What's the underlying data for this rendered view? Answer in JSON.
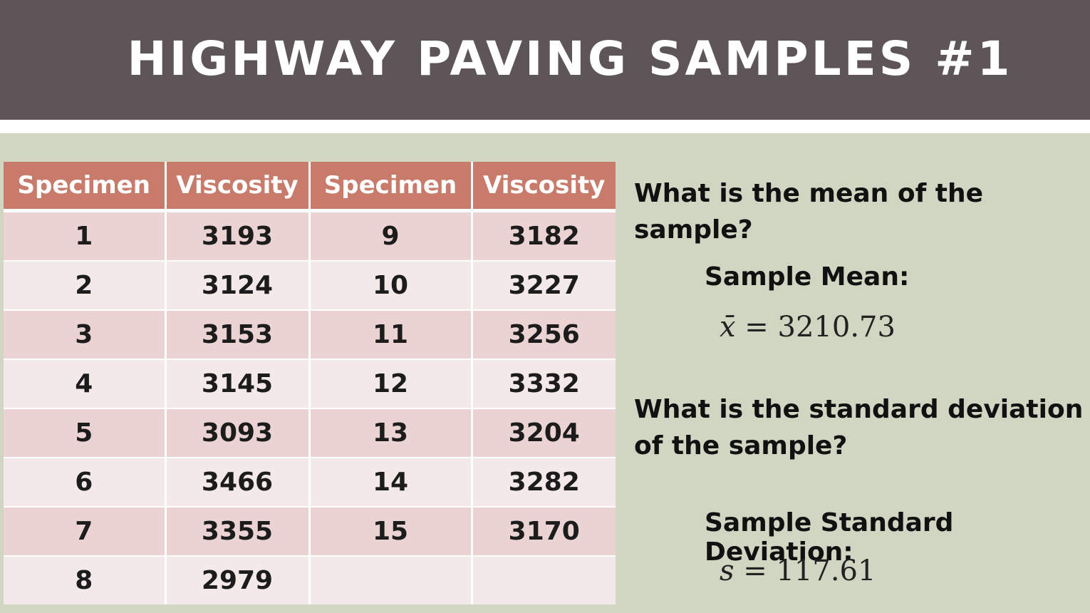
{
  "title": "HIGHWAY PAVING SAMPLES #1",
  "table": {
    "headers": [
      "Specimen",
      "Viscosity",
      "Specimen",
      "Viscosity"
    ],
    "rows": [
      [
        "1",
        "3193",
        "9",
        "3182"
      ],
      [
        "2",
        "3124",
        "10",
        "3227"
      ],
      [
        "3",
        "3153",
        "11",
        "3256"
      ],
      [
        "4",
        "3145",
        "12",
        "3332"
      ],
      [
        "5",
        "3093",
        "13",
        "3204"
      ],
      [
        "6",
        "3466",
        "14",
        "3282"
      ],
      [
        "7",
        "3355",
        "15",
        "3170"
      ],
      [
        "8",
        "2979",
        "",
        ""
      ]
    ]
  },
  "mean": {
    "question": "What is the mean of the sample?",
    "label": "Sample Mean:",
    "symbol": "x̄",
    "equals": " = ",
    "value": "3210.73"
  },
  "std_dev": {
    "question_line1": "What is the standard deviation",
    "question_line2": "of the sample?",
    "label": "Sample Standard Deviation:",
    "symbol": "s",
    "equals": " = ",
    "value": "117.61"
  }
}
